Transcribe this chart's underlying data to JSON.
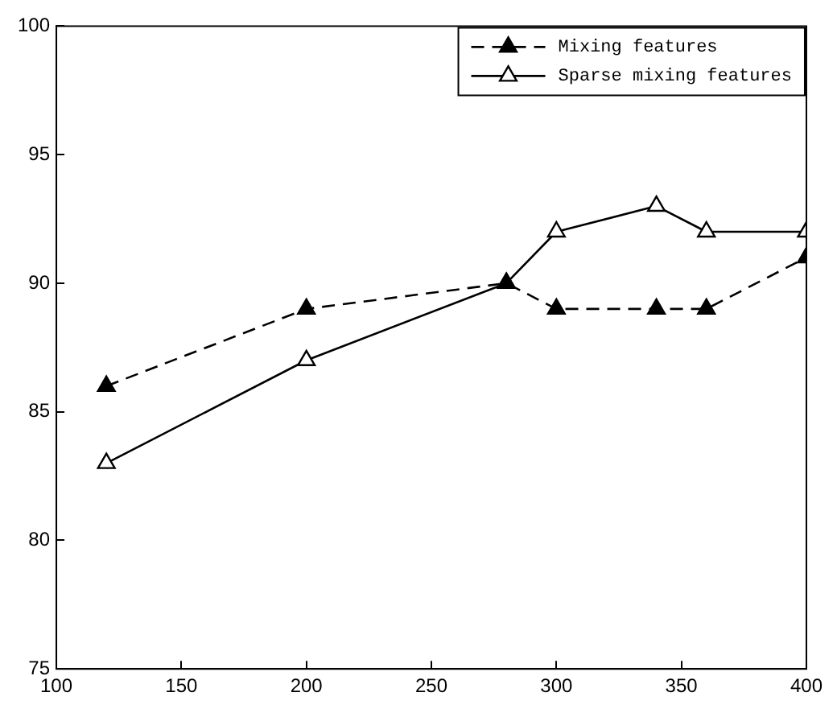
{
  "chart_data": {
    "type": "line",
    "x": [
      120,
      200,
      280,
      300,
      340,
      360,
      400
    ],
    "series": [
      {
        "name": "Mixing features",
        "color": "#000000",
        "values": [
          86,
          89,
          90,
          89,
          89,
          89,
          91
        ],
        "line_style": "dashed"
      },
      {
        "name": "Sparse mixing features",
        "color": "#000000",
        "values": [
          83,
          87,
          90,
          92,
          93,
          92,
          92
        ],
        "line_style": "solid"
      }
    ],
    "xlim": [
      100,
      400
    ],
    "xticks": [
      100,
      150,
      200,
      250,
      300,
      350,
      400
    ],
    "ylim": [
      75,
      100
    ],
    "yticks": [
      75,
      80,
      85,
      90,
      95,
      100
    ],
    "grid": false,
    "legend": "top right",
    "marker": "triangle"
  }
}
